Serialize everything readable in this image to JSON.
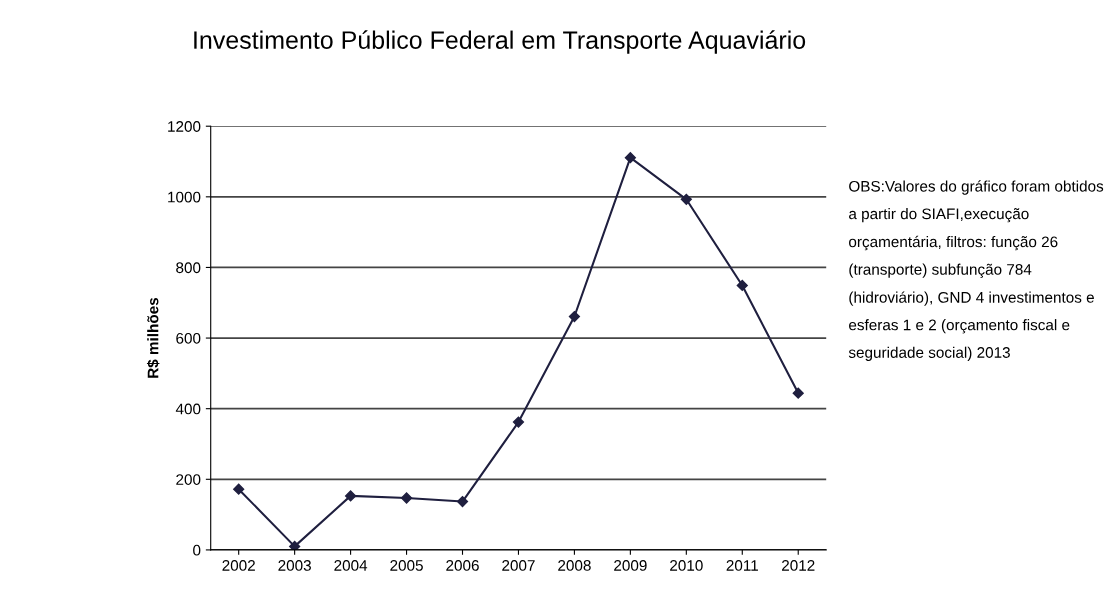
{
  "chart_data": {
    "type": "line",
    "title": "Investimento Público Federal em Transporte Aquaviário",
    "ylabel": "R$ milhões",
    "categories": [
      "2002",
      "2003",
      "2004",
      "2005",
      "2006",
      "2007",
      "2008",
      "2009",
      "2010",
      "2011",
      "2012"
    ],
    "series": [
      {
        "color": "#1f1f3f",
        "values": [
          172,
          10,
          153,
          147,
          137,
          362,
          661,
          1111,
          993,
          749,
          444
        ]
      }
    ],
    "ylim": [
      0,
      1200
    ],
    "yticks": [
      0,
      200,
      400,
      600,
      800,
      1000,
      1200
    ],
    "grid": "y",
    "marker": "diamond",
    "line_style": "solid",
    "annotations": [
      "OBS:Valores do gráfico foram obtidos a partir do SIAFI,execução orçamentária, filtros: função 26 (transporte) subfunção 784 (hidroviário), GND 4 investimentos e esferas 1 e 2 (orçamento fiscal e seguridade social) 2013"
    ]
  }
}
